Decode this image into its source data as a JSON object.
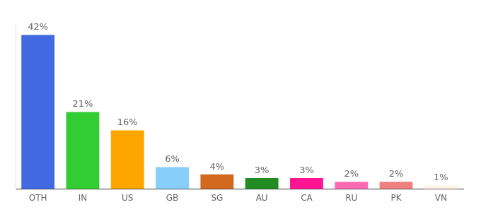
{
  "chart_data": {
    "type": "bar",
    "categories": [
      "OTH",
      "IN",
      "US",
      "GB",
      "SG",
      "AU",
      "CA",
      "RU",
      "PK",
      "VN"
    ],
    "values": [
      42,
      21,
      16,
      6,
      4,
      3,
      3,
      2,
      2,
      1
    ],
    "value_labels": [
      "42%",
      "21%",
      "16%",
      "6%",
      "4%",
      "3%",
      "3%",
      "2%",
      "2%",
      "1%"
    ],
    "colors": [
      "#4169e1",
      "#32cd32",
      "#ffa500",
      "#87cefa",
      "#d2691e",
      "#228b22",
      "#ff1493",
      "#ff69b4",
      "#f08080",
      "#fdf5e6"
    ],
    "ylim": [
      0,
      45
    ],
    "grid": false,
    "data_labels": true,
    "tick_labels": "x"
  }
}
